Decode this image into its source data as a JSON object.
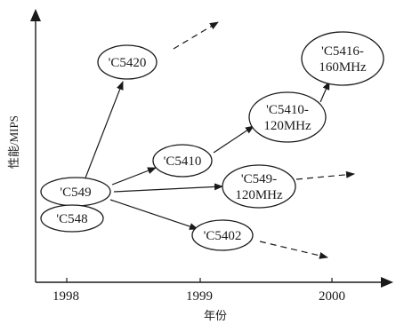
{
  "axes": {
    "y_label": "性能/MIPS",
    "x_label": "年份",
    "x_ticks": [
      "1998",
      "1999",
      "2000"
    ]
  },
  "nodes": {
    "c5420": {
      "lines": [
        "'C5420"
      ]
    },
    "c5416": {
      "lines": [
        "'C5416-",
        "160MHz"
      ]
    },
    "c5410_120": {
      "lines": [
        "'C5410-",
        "120MHz"
      ]
    },
    "c5410": {
      "lines": [
        "'C5410"
      ]
    },
    "c549": {
      "lines": [
        "'C549"
      ]
    },
    "c549_120": {
      "lines": [
        "'C549-",
        "120MHz"
      ]
    },
    "c548": {
      "lines": [
        "'C548"
      ]
    },
    "c5402": {
      "lines": [
        "'C5402"
      ]
    }
  }
}
